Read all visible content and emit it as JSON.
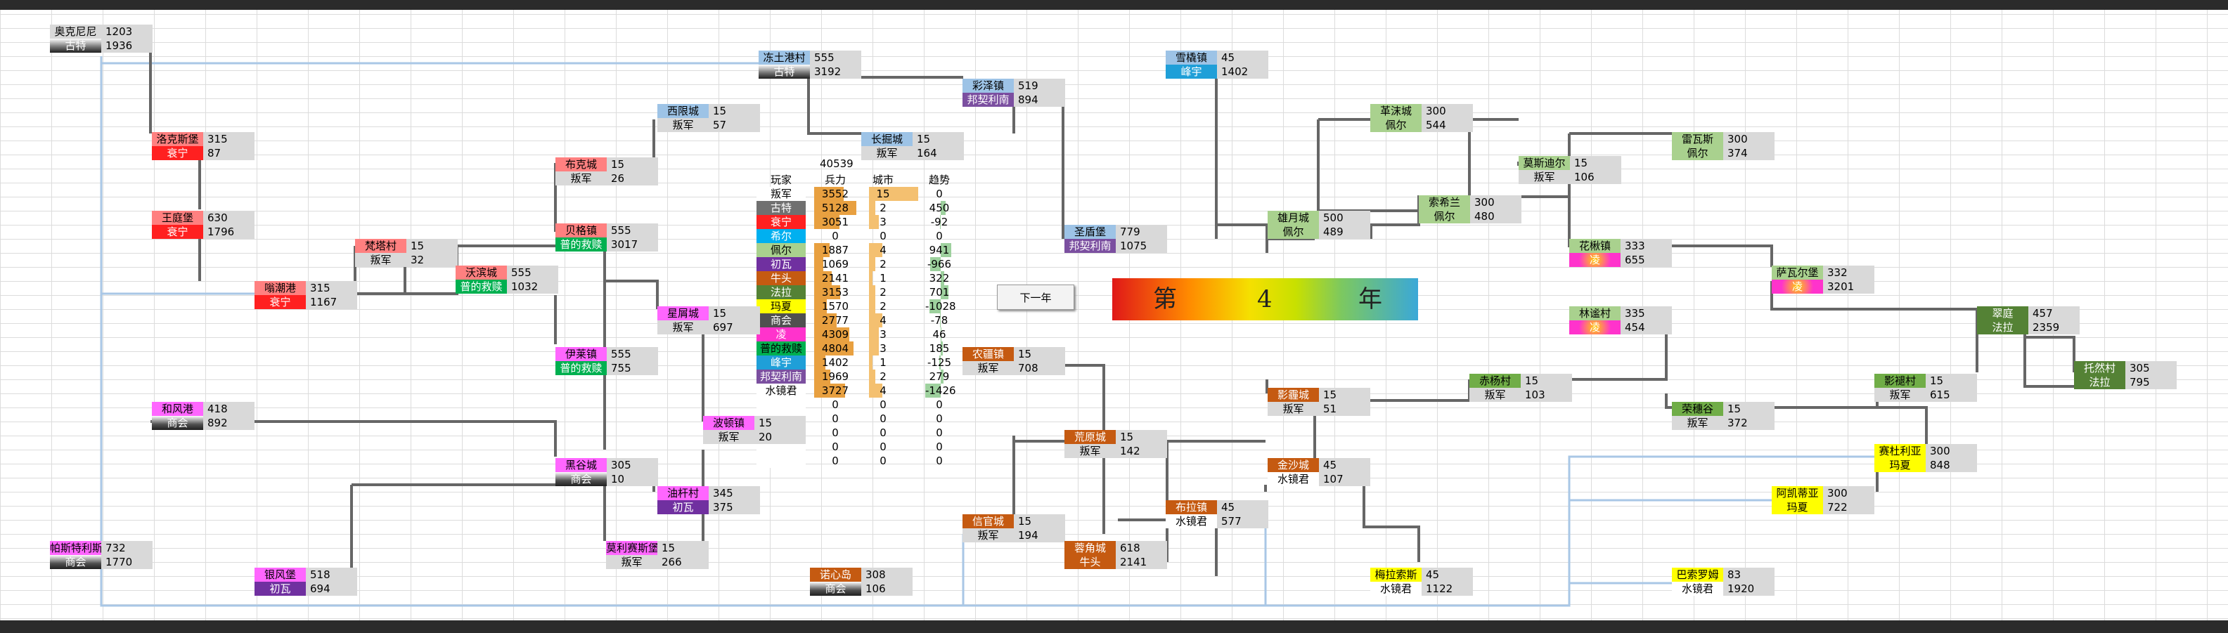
{
  "year_banner": {
    "prefix": "第",
    "number": "4",
    "suffix": "年"
  },
  "next_button": "下一年",
  "stats": {
    "total": "40539",
    "headers": {
      "player": "玩家",
      "troops": "兵力",
      "cities": "城市",
      "trend": "趋势"
    },
    "rows": [
      {
        "faction": "叛军",
        "troops": "3552",
        "cities": "15",
        "trend": "0",
        "color": "#ffffff",
        "text_color": "#000000"
      },
      {
        "faction": "古特",
        "troops": "5128",
        "cities": "2",
        "trend": "450",
        "color": "#707070",
        "text_color": "#ffffff"
      },
      {
        "faction": "衰宁",
        "troops": "3051",
        "cities": "3",
        "trend": "-92",
        "color": "#ff2020",
        "text_color": "#ffffff"
      },
      {
        "faction": "希尔",
        "troops": "0",
        "cities": "0",
        "trend": "0",
        "color": "#00b0f0",
        "text_color": "#ffffff"
      },
      {
        "faction": "佩尔",
        "troops": "1887",
        "cities": "4",
        "trend": "941",
        "color": "#a9d18e",
        "text_color": "#000000"
      },
      {
        "faction": "初瓦",
        "troops": "1069",
        "cities": "2",
        "trend": "-966",
        "color": "#7030a0",
        "text_color": "#ffffff"
      },
      {
        "faction": "牛头",
        "troops": "2141",
        "cities": "1",
        "trend": "322",
        "color": "#c55a11",
        "text_color": "#ffffff"
      },
      {
        "faction": "法拉",
        "troops": "3153",
        "cities": "2",
        "trend": "701",
        "color": "#548235",
        "text_color": "#ffffff"
      },
      {
        "faction": "玛夏",
        "troops": "1570",
        "cities": "2",
        "trend": "-1028",
        "color": "#ffff00",
        "text_color": "#000000"
      },
      {
        "faction": "商会",
        "troops": "2777",
        "cities": "4",
        "trend": "-78",
        "color": "#505050",
        "text_color": "#ffffff"
      },
      {
        "faction": "凌",
        "troops": "4309",
        "cities": "3",
        "trend": "46",
        "color": "#ff33cc",
        "text_color": "#ffffff"
      },
      {
        "faction": "普的救赎",
        "troops": "4804",
        "cities": "3",
        "trend": "185",
        "color": "#00b050",
        "text_color": "#000000"
      },
      {
        "faction": "峰宇",
        "troops": "1402",
        "cities": "1",
        "trend": "-125",
        "color": "#1f9fd8",
        "text_color": "#ffffff"
      },
      {
        "faction": "邦契利南",
        "troops": "1969",
        "cities": "2",
        "trend": "279",
        "color": "#7b4fa0",
        "text_color": "#ffffff"
      },
      {
        "faction": "水镜君",
        "troops": "3727",
        "cities": "4",
        "trend": "-1426",
        "color": "#ffffff",
        "text_color": "#000000"
      },
      {
        "faction": "",
        "troops": "0",
        "cities": "0",
        "trend": "0",
        "color": "#ffffff",
        "text_color": "#000000"
      },
      {
        "faction": "",
        "troops": "0",
        "cities": "0",
        "trend": "0",
        "color": "#ffffff",
        "text_color": "#000000"
      },
      {
        "faction": "",
        "troops": "0",
        "cities": "0",
        "trend": "0",
        "color": "#ffffff",
        "text_color": "#000000"
      },
      {
        "faction": "",
        "troops": "0",
        "cities": "0",
        "trend": "0",
        "color": "#ffffff",
        "text_color": "#000000"
      },
      {
        "faction": "",
        "troops": "0",
        "cities": "0",
        "trend": "0",
        "color": "#ffffff",
        "text_color": "#000000"
      }
    ]
  },
  "cities": [
    {
      "name": "奥克尼尼",
      "faction": "古特",
      "troops": "1203",
      "gold": "1936",
      "name_color": "#d9d9d9",
      "faction_color": "#707070"
    },
    {
      "name": "冻土港村",
      "faction": "古特",
      "troops": "555",
      "gold": "3192",
      "name_color": "#9dc3e6",
      "faction_color": "#707070"
    },
    {
      "name": "雪橇镇",
      "faction": "峰宇",
      "troops": "45",
      "gold": "1402",
      "name_color": "#9dc3e6",
      "faction_color": "#1f9fd8"
    },
    {
      "name": "彩泽镇",
      "faction": "邦契利南",
      "troops": "519",
      "gold": "894",
      "name_color": "#9dc3e6",
      "faction_color": "#7b4fa0"
    },
    {
      "name": "西限城",
      "faction": "叛军",
      "troops": "15",
      "gold": "57",
      "name_color": "#9dc3e6",
      "faction_color": "#d9d9d9"
    },
    {
      "name": "长掘城",
      "faction": "叛军",
      "troops": "15",
      "gold": "164",
      "name_color": "#9dc3e6",
      "faction_color": "#d9d9d9"
    },
    {
      "name": "洛克斯堡",
      "faction": "衰宁",
      "troops": "315",
      "gold": "87",
      "name_color": "#ff8080",
      "faction_color": "#ff2020"
    },
    {
      "name": "布克城",
      "faction": "叛军",
      "troops": "15",
      "gold": "26",
      "name_color": "#ff8080",
      "faction_color": "#d9d9d9"
    },
    {
      "name": "王庭堡",
      "faction": "衰宁",
      "troops": "630",
      "gold": "1796",
      "name_color": "#ff8080",
      "faction_color": "#ff2020"
    },
    {
      "name": "贝格镇",
      "faction": "普的救赎",
      "troops": "555",
      "gold": "3017",
      "name_color": "#ff8080",
      "faction_color": "#00b050"
    },
    {
      "name": "梵塔村",
      "faction": "叛军",
      "troops": "15",
      "gold": "32",
      "name_color": "#ff8080",
      "faction_color": "#d9d9d9"
    },
    {
      "name": "沃滨城",
      "faction": "普的救赎",
      "troops": "555",
      "gold": "1032",
      "name_color": "#ff8080",
      "faction_color": "#00b050"
    },
    {
      "name": "嗡潮港",
      "faction": "衰宁",
      "troops": "315",
      "gold": "1167",
      "name_color": "#ff8080",
      "faction_color": "#ff2020"
    },
    {
      "name": "星屑城",
      "faction": "叛军",
      "troops": "15",
      "gold": "697",
      "name_color": "#ff66ff",
      "faction_color": "#d9d9d9"
    },
    {
      "name": "伊莱镇",
      "faction": "普的救赎",
      "troops": "555",
      "gold": "755",
      "name_color": "#ff66ff",
      "faction_color": "#00b050"
    },
    {
      "name": "和风港",
      "faction": "商会",
      "troops": "418",
      "gold": "892",
      "name_color": "#ff66ff",
      "faction_color": "#505050"
    },
    {
      "name": "波顿镇",
      "faction": "叛军",
      "troops": "15",
      "gold": "20",
      "name_color": "#ff66ff",
      "faction_color": "#d9d9d9"
    },
    {
      "name": "黑谷城",
      "faction": "商会",
      "troops": "305",
      "gold": "10",
      "name_color": "#ff66ff",
      "faction_color": "#505050"
    },
    {
      "name": "油杆村",
      "faction": "初瓦",
      "troops": "345",
      "gold": "375",
      "name_color": "#ff66ff",
      "faction_color": "#7030a0"
    },
    {
      "name": "帕斯特利斯",
      "faction": "商会",
      "troops": "732",
      "gold": "1770",
      "name_color": "#ff66ff",
      "faction_color": "#505050"
    },
    {
      "name": "银风堡",
      "faction": "初瓦",
      "troops": "518",
      "gold": "694",
      "name_color": "#ff66ff",
      "faction_color": "#7030a0"
    },
    {
      "name": "莫利赛斯堡",
      "faction": "叛军",
      "troops": "15",
      "gold": "266",
      "name_color": "#ff66ff",
      "faction_color": "#d9d9d9"
    },
    {
      "name": "诺心岛",
      "faction": "商会",
      "troops": "308",
      "gold": "106",
      "name_color": "#c55a11",
      "faction_color": "#505050"
    },
    {
      "name": "农疆镇",
      "faction": "叛军",
      "troops": "15",
      "gold": "708",
      "name_color": "#c55a11",
      "faction_color": "#d9d9d9"
    },
    {
      "name": "荒原城",
      "faction": "叛军",
      "troops": "15",
      "gold": "142",
      "name_color": "#c55a11",
      "faction_color": "#d9d9d9"
    },
    {
      "name": "信官城",
      "faction": "叛军",
      "troops": "15",
      "gold": "194",
      "name_color": "#c55a11",
      "faction_color": "#d9d9d9"
    },
    {
      "name": "蓉角城",
      "faction": "牛头",
      "troops": "618",
      "gold": "2141",
      "name_color": "#c55a11",
      "faction_color": "#c55a11"
    },
    {
      "name": "圣盾堡",
      "faction": "邦契利南",
      "troops": "779",
      "gold": "1075",
      "name_color": "#9dc3e6",
      "faction_color": "#7b4fa0"
    },
    {
      "name": "雄月城",
      "faction": "佩尔",
      "troops": "500",
      "gold": "489",
      "name_color": "#a9d18e",
      "faction_color": "#a9d18e"
    },
    {
      "name": "革沫城",
      "faction": "佩尔",
      "troops": "300",
      "gold": "544",
      "name_color": "#a9d18e",
      "faction_color": "#a9d18e"
    },
    {
      "name": "索希兰",
      "faction": "佩尔",
      "troops": "300",
      "gold": "480",
      "name_color": "#a9d18e",
      "faction_color": "#a9d18e"
    },
    {
      "name": "莫斯迪尔",
      "faction": "叛军",
      "troops": "15",
      "gold": "106",
      "name_color": "#a9d18e",
      "faction_color": "#d9d9d9"
    },
    {
      "name": "雷瓦斯",
      "faction": "佩尔",
      "troops": "300",
      "gold": "374",
      "name_color": "#a9d18e",
      "faction_color": "#a9d18e"
    },
    {
      "name": "花楸镇",
      "faction": "凌",
      "troops": "333",
      "gold": "655",
      "name_color": "#a9d18e",
      "faction_color": "#ff33cc"
    },
    {
      "name": "萨瓦尔堡",
      "faction": "凌",
      "troops": "332",
      "gold": "3201",
      "name_color": "#a9d18e",
      "faction_color": "#ff33cc"
    },
    {
      "name": "林谧村",
      "faction": "凌",
      "troops": "335",
      "gold": "454",
      "name_color": "#a9d18e",
      "faction_color": "#ff33cc"
    },
    {
      "name": "翠庭",
      "faction": "法拉",
      "troops": "457",
      "gold": "2359",
      "name_color": "#548235",
      "faction_color": "#548235"
    },
    {
      "name": "托然村",
      "faction": "法拉",
      "troops": "305",
      "gold": "795",
      "name_color": "#548235",
      "faction_color": "#548235"
    },
    {
      "name": "影霾城",
      "faction": "叛军",
      "troops": "15",
      "gold": "51",
      "name_color": "#c55a11",
      "faction_color": "#d9d9d9"
    },
    {
      "name": "赤杨村",
      "faction": "叛军",
      "troops": "15",
      "gold": "103",
      "name_color": "#70ad47",
      "faction_color": "#d9d9d9"
    },
    {
      "name": "荣穗谷",
      "faction": "叛军",
      "troops": "15",
      "gold": "372",
      "name_color": "#70ad47",
      "faction_color": "#d9d9d9"
    },
    {
      "name": "影褪村",
      "faction": "叛军",
      "troops": "15",
      "gold": "615",
      "name_color": "#70ad47",
      "faction_color": "#d9d9d9"
    },
    {
      "name": "金沙城",
      "faction": "水镜君",
      "troops": "45",
      "gold": "107",
      "name_color": "#c55a11",
      "faction_color": "#ffffff"
    },
    {
      "name": "赛杜利亚",
      "faction": "玛夏",
      "troops": "300",
      "gold": "848",
      "name_color": "#ffff00",
      "faction_color": "#ffff00"
    },
    {
      "name": "布拉镇",
      "faction": "水镜君",
      "troops": "45",
      "gold": "577",
      "name_color": "#c55a11",
      "faction_color": "#ffffff"
    },
    {
      "name": "阿凯蒂亚",
      "faction": "玛夏",
      "troops": "300",
      "gold": "722",
      "name_color": "#ffff00",
      "faction_color": "#ffff00"
    },
    {
      "name": "梅拉索斯",
      "faction": "水镜君",
      "troops": "45",
      "gold": "1122",
      "name_color": "#ffff00",
      "faction_color": "#ffffff"
    },
    {
      "name": "巴索罗姆",
      "faction": "水镜君",
      "troops": "83",
      "gold": "1920",
      "name_color": "#ffff00",
      "faction_color": "#ffffff"
    }
  ]
}
